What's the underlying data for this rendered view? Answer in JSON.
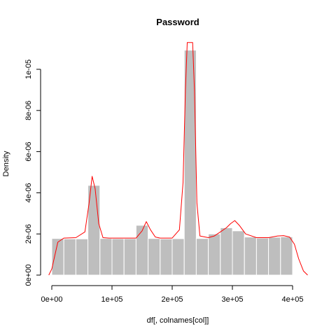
{
  "chart_data": {
    "type": "bar",
    "title": "Password",
    "xlabel": "df[, colnames[col]]",
    "ylabel": "Density",
    "xlim": [
      0,
      400000
    ],
    "ylim": [
      0,
      1.12e-05
    ],
    "bin_width": 20000,
    "bins": [
      {
        "start": 0,
        "end": 20000,
        "density": 1.78e-06
      },
      {
        "start": 20000,
        "end": 40000,
        "density": 1.76e-06
      },
      {
        "start": 40000,
        "end": 60000,
        "density": 1.76e-06
      },
      {
        "start": 60000,
        "end": 80000,
        "density": 4.36e-06
      },
      {
        "start": 80000,
        "end": 100000,
        "density": 1.78e-06
      },
      {
        "start": 100000,
        "end": 120000,
        "density": 1.77e-06
      },
      {
        "start": 120000,
        "end": 140000,
        "density": 1.77e-06
      },
      {
        "start": 140000,
        "end": 160000,
        "density": 2.42e-06
      },
      {
        "start": 160000,
        "end": 180000,
        "density": 1.78e-06
      },
      {
        "start": 180000,
        "end": 200000,
        "density": 1.76e-06
      },
      {
        "start": 200000,
        "end": 220000,
        "density": 1.77e-06
      },
      {
        "start": 220000,
        "end": 240000,
        "density": 1.093e-05
      },
      {
        "start": 240000,
        "end": 260000,
        "density": 1.78e-06
      },
      {
        "start": 260000,
        "end": 280000,
        "density": 2e-06
      },
      {
        "start": 280000,
        "end": 300000,
        "density": 2.3e-06
      },
      {
        "start": 300000,
        "end": 320000,
        "density": 2.15e-06
      },
      {
        "start": 320000,
        "end": 340000,
        "density": 1.85e-06
      },
      {
        "start": 340000,
        "end": 360000,
        "density": 1.8e-06
      },
      {
        "start": 360000,
        "end": 380000,
        "density": 1.84e-06
      },
      {
        "start": 380000,
        "end": 400000,
        "density": 1.86e-06
      }
    ],
    "density_curve": {
      "x": [
        -5000,
        0,
        10000,
        20000,
        40000,
        55000,
        62000,
        67000,
        72000,
        78000,
        85000,
        95000,
        120000,
        140000,
        150000,
        157000,
        164000,
        172000,
        180000,
        200000,
        212000,
        218000,
        222000,
        225000,
        228000,
        231000,
        234000,
        237000,
        241000,
        246000,
        260000,
        270000,
        280000,
        290000,
        297000,
        304000,
        312000,
        322000,
        340000,
        360000,
        375000,
        385000,
        395000,
        403000,
        410000,
        418000,
        425000
      ],
      "y": [
        0.0,
        3e-07,
        1.6e-06,
        1.8e-06,
        1.82e-06,
        2.1e-06,
        3.5e-06,
        4.8e-06,
        4.2e-06,
        2.5e-06,
        1.82e-06,
        1.8e-06,
        1.8e-06,
        1.8e-06,
        2.15e-06,
        2.6e-06,
        2.2e-06,
        1.85e-06,
        1.8e-06,
        1.8e-06,
        2.2e-06,
        4.5e-06,
        9e-06,
        1.13e-05,
        1.13e-05,
        1.13e-05,
        1.13e-05,
        9e-06,
        3.5e-06,
        1.9e-06,
        1.82e-06,
        1.9e-06,
        2.1e-06,
        2.3e-06,
        2.5e-06,
        2.65e-06,
        2.4e-06,
        2e-06,
        1.82e-06,
        1.82e-06,
        1.9e-06,
        1.92e-06,
        1.85e-06,
        1.5e-06,
        8e-07,
        2e-07,
        0.0
      ]
    },
    "x_ticks": [
      {
        "value": 0,
        "label": "0e+00"
      },
      {
        "value": 100000,
        "label": "1e+05"
      },
      {
        "value": 200000,
        "label": "2e+05"
      },
      {
        "value": 300000,
        "label": "3e+05"
      },
      {
        "value": 400000,
        "label": "4e+05"
      }
    ],
    "y_ticks": [
      {
        "value": 0,
        "label": "0e+00"
      },
      {
        "value": 2e-06,
        "label": "2e-06"
      },
      {
        "value": 4e-06,
        "label": "4e-06"
      },
      {
        "value": 6e-06,
        "label": "6e-06"
      },
      {
        "value": 8e-06,
        "label": "8e-06"
      },
      {
        "value": 1e-05,
        "label": "1e-05"
      }
    ],
    "colors": {
      "bars": "#bebebe",
      "bar_border": "#ffffff",
      "density_line": "#ff0000",
      "axes": "#000000"
    },
    "grid": false,
    "legend": "none"
  }
}
